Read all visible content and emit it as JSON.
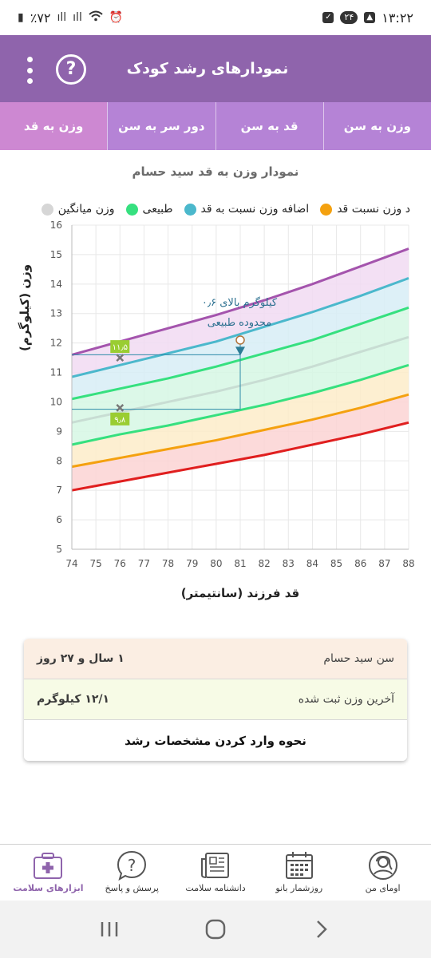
{
  "status_bar": {
    "time": "۱۳:۲۲",
    "notification_count": "۲۴",
    "battery": "٪۷۲"
  },
  "app_bar": {
    "title": "نمودارهای رشد کودک",
    "help_glyph": "?"
  },
  "tabs": [
    {
      "label": "وزن به سن",
      "active": false
    },
    {
      "label": "قد به سن",
      "active": false
    },
    {
      "label": "دور سر به سن",
      "active": false
    },
    {
      "label": "وزن به قد",
      "active": true
    }
  ],
  "chart_title": "نمودار وزن به قد سید حسام",
  "legend": [
    {
      "label": "وزن میانگین",
      "color": "#d6d6d6"
    },
    {
      "label": "طبیعی",
      "color": "#36e07f"
    },
    {
      "label": "اضافه وزن نسبت به قد",
      "color": "#4bb8cc"
    },
    {
      "label": "د وزن نسبت قد",
      "color": "#f4a10f"
    }
  ],
  "chart_data": {
    "type": "area",
    "xlabel": "قد فرزند (سانتیمتر)",
    "ylabel": "وزن (کیلوگرم)",
    "xlim": [
      74,
      88
    ],
    "ylim": [
      5,
      16
    ],
    "x_ticks": [
      74,
      75,
      76,
      77,
      78,
      79,
      80,
      81,
      82,
      83,
      84,
      85,
      86,
      87,
      88
    ],
    "y_ticks": [
      5,
      6,
      7,
      8,
      9,
      10,
      11,
      12,
      13,
      14,
      15,
      16
    ],
    "grid": true,
    "x": [
      74,
      76,
      78,
      80,
      82,
      84,
      86,
      88
    ],
    "curves": [
      {
        "color": "#e01f1f",
        "values": [
          7.0,
          7.3,
          7.6,
          7.9,
          8.2,
          8.55,
          8.9,
          9.3
        ]
      },
      {
        "color": "#f4a10f",
        "values": [
          7.8,
          8.1,
          8.4,
          8.7,
          9.05,
          9.4,
          9.8,
          10.25
        ]
      },
      {
        "color": "#36e07f",
        "values": [
          8.55,
          8.9,
          9.2,
          9.55,
          9.9,
          10.3,
          10.75,
          11.25
        ]
      },
      {
        "color": "#c8ddd3",
        "values": [
          9.3,
          9.65,
          10.0,
          10.35,
          10.75,
          11.2,
          11.7,
          12.2
        ]
      },
      {
        "color": "#36e07f",
        "values": [
          10.1,
          10.45,
          10.8,
          11.2,
          11.65,
          12.1,
          12.65,
          13.2
        ]
      },
      {
        "color": "#4bb8cc",
        "values": [
          10.85,
          11.25,
          11.65,
          12.05,
          12.55,
          13.05,
          13.6,
          14.2
        ]
      },
      {
        "color": "#a454ad",
        "values": [
          11.6,
          12.05,
          12.5,
          12.95,
          13.45,
          14.0,
          14.6,
          15.2
        ]
      }
    ],
    "bands": [
      {
        "from": 0,
        "to": 1,
        "color": "#fbd4d4"
      },
      {
        "from": 1,
        "to": 2,
        "color": "#fdecc9"
      },
      {
        "from": 2,
        "to": 4,
        "color": "#d6f7e4"
      },
      {
        "from": 4,
        "to": 5,
        "color": "#d7edf6"
      },
      {
        "from": 5,
        "to": 6,
        "color": "#f1dbf2"
      }
    ],
    "range_markers": [
      {
        "x": 76,
        "y": 11.5,
        "label": "۱۱٫۵"
      },
      {
        "x": 76,
        "y": 9.8,
        "label": "۹٫۸"
      }
    ],
    "measurement": {
      "x": 81,
      "y": 12.1,
      "reference_y": 11.6
    },
    "annotation": {
      "line1": "۰٫۶ کیلوگرم بالای",
      "line2": "محدوده طبیعی"
    }
  },
  "info": {
    "age_label": "سن سید حسام",
    "age_value": "۱ سال و ۲۷ روز",
    "weight_label": "آخرین وزن ثبت شده",
    "weight_value": "۱۲/۱ کیلوگرم",
    "guide_link": "نحوه وارد کردن مشخصات رشد"
  },
  "bottom_nav": [
    {
      "label": "ابزارهای سلامت",
      "icon": "medical-kit-icon",
      "active": true
    },
    {
      "label": "پرسش و پاسخ",
      "icon": "question-bubble-icon",
      "active": false
    },
    {
      "label": "دانشنامه سلامت",
      "icon": "newspaper-icon",
      "active": false
    },
    {
      "label": "روزشمار بانو",
      "icon": "calendar-icon",
      "active": false
    },
    {
      "label": "اومای من",
      "icon": "profile-icon",
      "active": false
    }
  ],
  "colors": {
    "primary": "#8f64ac",
    "tab_bg": "#b583d6",
    "tab_active": "#cd88d2",
    "measurement_line": "#2b8aa8"
  }
}
